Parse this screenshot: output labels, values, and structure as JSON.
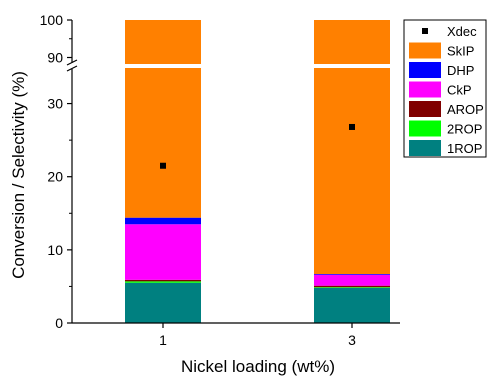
{
  "chart_data": {
    "type": "bar",
    "stacked": true,
    "broken_y_axis": true,
    "categories": [
      "1",
      "3"
    ],
    "xlabel": "Nickel loading (wt%)",
    "ylabel": "Conversion / Selectivity (%)",
    "ylim_lower": [
      0,
      35
    ],
    "ylim_upper": [
      88,
      100
    ],
    "y_ticks_lower": [
      "0",
      "10",
      "20",
      "30"
    ],
    "y_ticks_upper": [
      "90",
      "100"
    ],
    "legend_position": "top-right",
    "series": [
      {
        "name": "1ROP",
        "color": "#008080",
        "values": [
          5.5,
          4.8
        ]
      },
      {
        "name": "2ROP",
        "color": "#00ff00",
        "values": [
          0.2,
          0.1
        ]
      },
      {
        "name": "AROP",
        "color": "#800000",
        "values": [
          0.2,
          0.2
        ]
      },
      {
        "name": "CkP",
        "color": "#ff00ff",
        "values": [
          7.6,
          1.5
        ]
      },
      {
        "name": "DHP",
        "color": "#0000ff",
        "values": [
          0.9,
          0.1
        ]
      },
      {
        "name": "SkIP",
        "color": "#ff8000",
        "values": [
          85.6,
          93.3
        ]
      }
    ],
    "markers": {
      "name": "Xdec",
      "color": "#000000",
      "symbol": "square",
      "values": [
        21.5,
        26.8
      ]
    }
  }
}
